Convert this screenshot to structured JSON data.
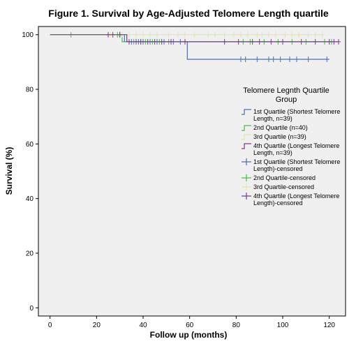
{
  "chart_data": {
    "type": "line",
    "title": "Figure 1. Survival by Age-Adjusted Telomere Length quartile",
    "xlabel": "Follow up (months)",
    "ylabel": "Survival (%)",
    "xlim": [
      -5,
      127
    ],
    "ylim": [
      -3,
      103
    ],
    "xticks": [
      0,
      20,
      40,
      60,
      80,
      100,
      120
    ],
    "yticks": [
      0,
      20,
      40,
      60,
      80,
      100
    ],
    "grid": false,
    "background": "#f0f0f0",
    "legend": {
      "title_line1": "Telomere Legnth Quartile",
      "title_line2": "Group",
      "placement": "right",
      "entries": [
        {
          "lines": [
            "1st Quartile (Shortest Telomere",
            "Length, n=39)"
          ],
          "color": "#4a6fb5",
          "marker": "step"
        },
        {
          "lines": [
            "2nd Quartile (n=40)"
          ],
          "color": "#4cb84c",
          "marker": "step"
        },
        {
          "lines": [
            "3rd Quartile (n=39)"
          ],
          "color": "#e3e3b0",
          "marker": "step"
        },
        {
          "lines": [
            "4th Quartile (Longest Telomere",
            "Length, n=39)"
          ],
          "color": "#7a3c8c",
          "marker": "step"
        },
        {
          "lines": [
            "1st Quartile (Shortest Telomere",
            "Length)-censored"
          ],
          "color": "#4a6fb5",
          "marker": "plus"
        },
        {
          "lines": [
            "2nd Quartile-censored"
          ],
          "color": "#4cb84c",
          "marker": "plus"
        },
        {
          "lines": [
            "3rd Quartile-censored"
          ],
          "color": "#e3e3b0",
          "marker": "plus"
        },
        {
          "lines": [
            "4th Quartile (Longest Telomere",
            "Length)-censored"
          ],
          "color": "#7a3c8c",
          "marker": "plus"
        }
      ]
    },
    "series": [
      {
        "name": "1st Quartile (Shortest Telomere Length, n=39)",
        "color": "#4a6fb5",
        "steps": [
          [
            0,
            100
          ],
          [
            32,
            100
          ],
          [
            32,
            97.4
          ],
          [
            59,
            97.4
          ],
          [
            59,
            91
          ],
          [
            120,
            91
          ]
        ],
        "censored": [
          [
            30,
            100
          ],
          [
            35,
            97.4
          ],
          [
            38,
            97.4
          ],
          [
            40,
            97.4
          ],
          [
            43,
            97.4
          ],
          [
            46,
            97.4
          ],
          [
            49,
            97.4
          ],
          [
            53,
            97.4
          ],
          [
            56,
            97.4
          ],
          [
            82,
            91
          ],
          [
            84,
            91
          ],
          [
            89,
            91
          ],
          [
            94,
            91
          ],
          [
            96,
            91
          ],
          [
            99,
            91
          ],
          [
            103,
            91
          ],
          [
            106,
            91
          ],
          [
            111,
            91
          ],
          [
            119,
            91
          ]
        ]
      },
      {
        "name": "2nd Quartile (n=40)",
        "color": "#4cb84c",
        "steps": [
          [
            0,
            100
          ],
          [
            31,
            100
          ],
          [
            31,
            97.4
          ],
          [
            121,
            97.4
          ]
        ],
        "censored": [
          [
            9,
            100
          ],
          [
            29,
            100
          ],
          [
            36,
            97.4
          ],
          [
            39,
            97.4
          ],
          [
            41,
            97.4
          ],
          [
            44,
            97.4
          ],
          [
            47,
            97.4
          ],
          [
            51,
            97.4
          ],
          [
            83,
            97.4
          ],
          [
            86,
            97.4
          ],
          [
            92,
            97.4
          ],
          [
            98,
            97.4
          ],
          [
            104,
            97.4
          ],
          [
            110,
            97.4
          ],
          [
            118,
            97.4
          ],
          [
            121,
            97.4
          ]
        ]
      },
      {
        "name": "3rd Quartile (n=39)",
        "color": "#e3e3b0",
        "steps": [
          [
            0,
            100
          ],
          [
            117,
            100
          ]
        ],
        "censored": [
          [
            26,
            100
          ],
          [
            31,
            100
          ],
          [
            34,
            100
          ],
          [
            37,
            100
          ],
          [
            40,
            100
          ],
          [
            43,
            100
          ],
          [
            46,
            100
          ],
          [
            51,
            100
          ],
          [
            55,
            100
          ],
          [
            58,
            100
          ],
          [
            62,
            100
          ],
          [
            68,
            100
          ],
          [
            71,
            100
          ],
          [
            75,
            100
          ],
          [
            79,
            100
          ],
          [
            82,
            100
          ],
          [
            85,
            100
          ],
          [
            89,
            100
          ],
          [
            91,
            100
          ],
          [
            94,
            100
          ],
          [
            97,
            100
          ],
          [
            101,
            100
          ],
          [
            104,
            100
          ],
          [
            107,
            100
          ],
          [
            111,
            100
          ],
          [
            114,
            100
          ],
          [
            117,
            100
          ]
        ]
      },
      {
        "name": "4th Quartile (Longest Telomere Length, n=39)",
        "color": "#7a3c8c",
        "steps": [
          [
            0,
            100
          ],
          [
            33,
            100
          ],
          [
            33,
            97.4
          ],
          [
            124,
            97.4
          ]
        ],
        "censored": [
          [
            25,
            100
          ],
          [
            27,
            100
          ],
          [
            30,
            100
          ],
          [
            34,
            97.4
          ],
          [
            37,
            97.4
          ],
          [
            39,
            97.4
          ],
          [
            42,
            97.4
          ],
          [
            45,
            97.4
          ],
          [
            48,
            97.4
          ],
          [
            52,
            97.4
          ],
          [
            58,
            97.4
          ],
          [
            75,
            97.4
          ],
          [
            81,
            97.4
          ],
          [
            87,
            97.4
          ],
          [
            90,
            97.4
          ],
          [
            95,
            97.4
          ],
          [
            100,
            97.4
          ],
          [
            108,
            97.4
          ],
          [
            114,
            97.4
          ],
          [
            120,
            97.4
          ],
          [
            122,
            97.4
          ],
          [
            124,
            97.4
          ]
        ]
      }
    ]
  }
}
